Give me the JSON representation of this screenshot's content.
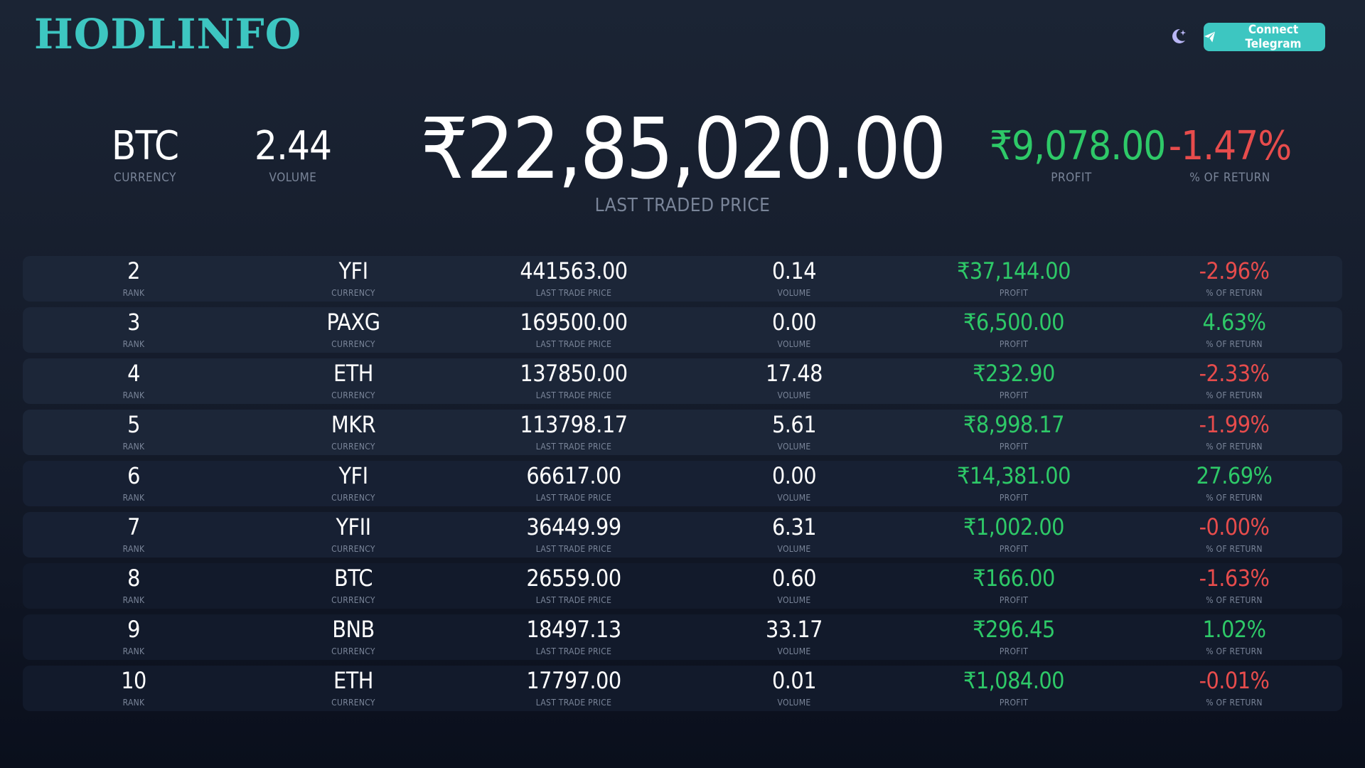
{
  "header": {
    "logo": "HODLINFO",
    "telegram_label": "Connect Telegram",
    "theme_icon": "moon-icon",
    "telegram_icon": "paper-plane-icon"
  },
  "summary": {
    "currency": "BTC",
    "currency_label": "CURRENCY",
    "volume": "2.44",
    "volume_label": "VOLUME",
    "price": "₹22,85,020.00",
    "price_label": "LAST TRADED PRICE",
    "profit": "₹9,078.00",
    "profit_label": "PROFIT",
    "return": "-1.47%",
    "return_label": "% OF RETURN"
  },
  "labels": {
    "rank": "RANK",
    "currency": "CURRENCY",
    "price": "LAST TRADE PRICE",
    "volume": "VOLUME",
    "profit": "PROFIT",
    "return": "% OF RETURN"
  },
  "colors": {
    "accent": "#3dc6c1",
    "positive": "#2ec968",
    "negative": "#e74c4c"
  },
  "rows": [
    {
      "rank": "2",
      "currency": "YFI",
      "price": "441563.00",
      "volume": "0.14",
      "profit": "₹37,144.00",
      "return": "-2.96%",
      "negative": true
    },
    {
      "rank": "3",
      "currency": "PAXG",
      "price": "169500.00",
      "volume": "0.00",
      "profit": "₹6,500.00",
      "return": "4.63%",
      "negative": false
    },
    {
      "rank": "4",
      "currency": "ETH",
      "price": "137850.00",
      "volume": "17.48",
      "profit": "₹232.90",
      "return": "-2.33%",
      "negative": true
    },
    {
      "rank": "5",
      "currency": "MKR",
      "price": "113798.17",
      "volume": "5.61",
      "profit": "₹8,998.17",
      "return": "-1.99%",
      "negative": true
    },
    {
      "rank": "6",
      "currency": "YFI",
      "price": "66617.00",
      "volume": "0.00",
      "profit": "₹14,381.00",
      "return": "27.69%",
      "negative": false
    },
    {
      "rank": "7",
      "currency": "YFII",
      "price": "36449.99",
      "volume": "6.31",
      "profit": "₹1,002.00",
      "return": "-0.00%",
      "negative": true
    },
    {
      "rank": "8",
      "currency": "BTC",
      "price": "26559.00",
      "volume": "0.60",
      "profit": "₹166.00",
      "return": "-1.63%",
      "negative": true
    },
    {
      "rank": "9",
      "currency": "BNB",
      "price": "18497.13",
      "volume": "33.17",
      "profit": "₹296.45",
      "return": "1.02%",
      "negative": false
    },
    {
      "rank": "10",
      "currency": "ETH",
      "price": "17797.00",
      "volume": "0.01",
      "profit": "₹1,084.00",
      "return": "-0.01%",
      "negative": true
    }
  ]
}
